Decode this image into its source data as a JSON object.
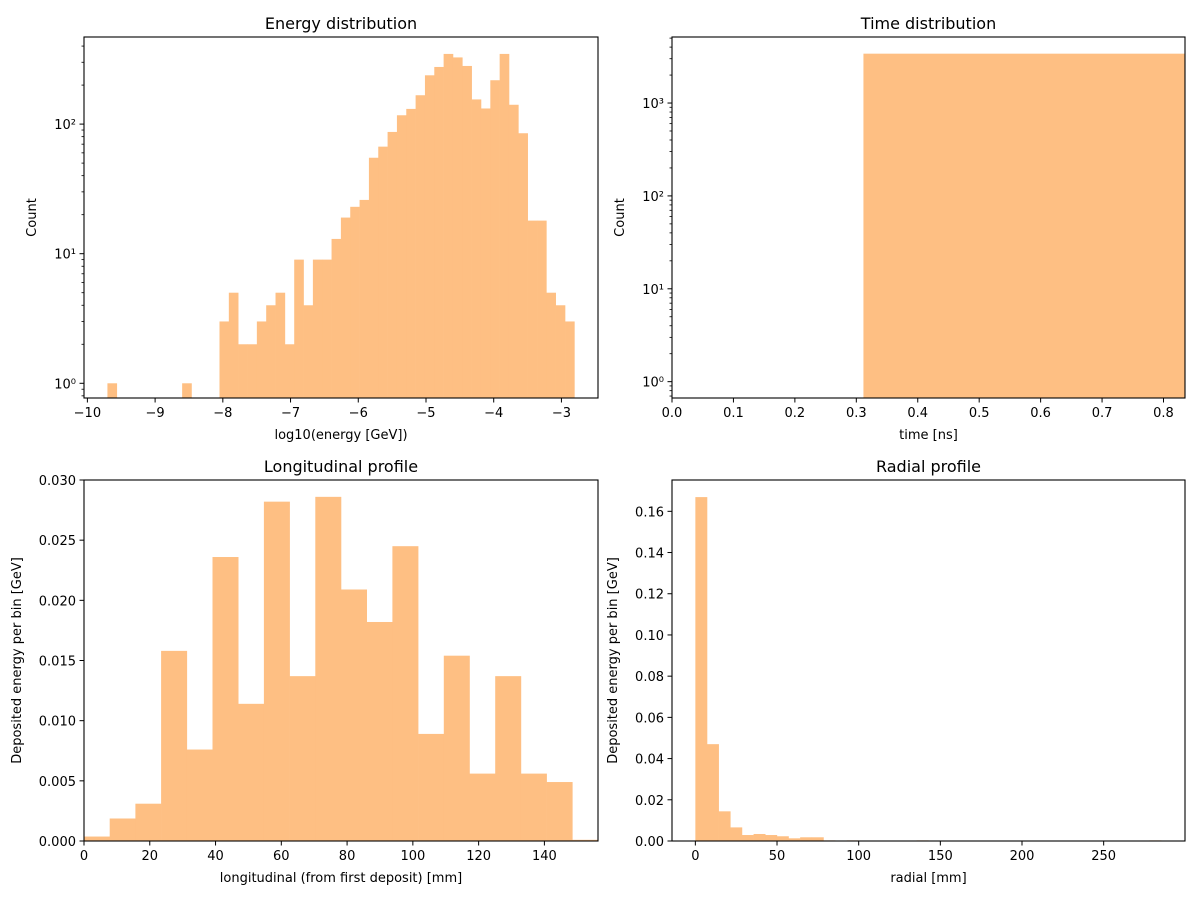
{
  "bar_color": "#febf83",
  "chart_data": [
    {
      "type": "bar",
      "title": "Energy distribution",
      "xlabel": "log10(energy [GeV])",
      "ylabel": "Count",
      "yscale": "log",
      "xlim": [
        -10.05,
        -2.46
      ],
      "ylim": [
        0.77,
        470
      ],
      "xticks": [
        -10,
        -9,
        -8,
        -7,
        -6,
        -5,
        -4,
        -3
      ],
      "xtick_labels": [
        "−10",
        "−9",
        "−8",
        "−7",
        "−6",
        "−5",
        "−4",
        "−3"
      ],
      "yticks": [
        1,
        10,
        100
      ],
      "ytick_labels": [
        "10⁰",
        "10¹",
        "10²"
      ],
      "bins": {
        "start": -9.704,
        "width": 0.1379
      },
      "values": [
        1,
        0,
        0,
        0,
        0,
        0,
        0,
        0,
        1,
        0,
        0,
        0,
        3,
        5,
        2,
        2,
        3,
        4,
        5,
        2,
        9,
        4,
        9,
        9,
        13,
        19,
        23,
        26,
        55,
        67,
        87,
        117,
        131,
        167,
        238,
        276,
        348,
        327,
        281,
        155,
        132,
        218,
        348,
        141,
        85,
        18,
        18,
        5,
        4,
        3
      ]
    },
    {
      "type": "bar",
      "title": "Time distribution",
      "xlabel": "time [ns]",
      "ylabel": "Count",
      "yscale": "log",
      "xlim": [
        0,
        0.835
      ],
      "ylim": [
        0.667,
        5140
      ],
      "xticks": [
        0,
        0.1,
        0.2,
        0.3,
        0.4,
        0.5,
        0.6,
        0.7,
        0.8
      ],
      "xtick_labels": [
        "0.0",
        "0.1",
        "0.2",
        "0.3",
        "0.4",
        "0.5",
        "0.6",
        "0.7",
        "0.8"
      ],
      "yticks": [
        1,
        10,
        100,
        1000
      ],
      "ytick_labels": [
        "10⁰",
        "10¹",
        "10²",
        "10³"
      ],
      "bins": {
        "start": 0.3116,
        "width": 0.5234
      },
      "values": [
        3400
      ]
    },
    {
      "type": "bar",
      "title": "Longitudinal profile",
      "xlabel": "longitudinal (from first deposit) [mm]",
      "ylabel": "Deposited energy per bin [GeV]",
      "yscale": "linear",
      "xlim": [
        0,
        156.3
      ],
      "ylim": [
        0,
        0.03
      ],
      "xticks": [
        0,
        20,
        40,
        60,
        80,
        100,
        120,
        140
      ],
      "xtick_labels": [
        "0",
        "20",
        "40",
        "60",
        "80",
        "100",
        "120",
        "140"
      ],
      "yticks": [
        0,
        0.005,
        0.01,
        0.015,
        0.02,
        0.025,
        0.03
      ],
      "ytick_labels": [
        "0.000",
        "0.005",
        "0.010",
        "0.015",
        "0.020",
        "0.025",
        "0.030"
      ],
      "bins": {
        "start": 0,
        "width": 7.815
      },
      "values": [
        0.00037,
        0.00187,
        0.0031,
        0.0158,
        0.0076,
        0.0236,
        0.0114,
        0.0282,
        0.0137,
        0.0286,
        0.0209,
        0.0182,
        0.0245,
        0.0089,
        0.0154,
        0.0056,
        0.0137,
        0.0056,
        0.0049,
        0.0001
      ]
    },
    {
      "type": "bar",
      "title": "Radial profile",
      "xlabel": "radial [mm]",
      "ylabel": "Deposited energy per bin [GeV]",
      "yscale": "linear",
      "xlim": [
        -14.3,
        299.8
      ],
      "ylim": [
        0,
        0.1752
      ],
      "xticks": [
        0,
        50,
        100,
        150,
        200,
        250
      ],
      "xtick_labels": [
        "0",
        "50",
        "100",
        "150",
        "200",
        "250"
      ],
      "yticks": [
        0,
        0.02,
        0.04,
        0.06,
        0.08,
        0.1,
        0.12,
        0.14,
        0.16
      ],
      "ytick_labels": [
        "0.00",
        "0.02",
        "0.04",
        "0.06",
        "0.08",
        "0.10",
        "0.12",
        "0.14",
        "0.16"
      ],
      "bins": {
        "start": 0,
        "width": 7.13
      },
      "values": [
        0.1669,
        0.047,
        0.0144,
        0.0066,
        0.0029,
        0.0034,
        0.0029,
        0.0023,
        0.0013,
        0.0018,
        0.0018,
        0.0003,
        0,
        0.0003,
        0,
        0,
        0,
        0,
        0,
        0.0003,
        0,
        0,
        0,
        0,
        0,
        0,
        0,
        0,
        0,
        0,
        0,
        0,
        0,
        0,
        0,
        0,
        0,
        0,
        0,
        0.0003
      ]
    }
  ]
}
